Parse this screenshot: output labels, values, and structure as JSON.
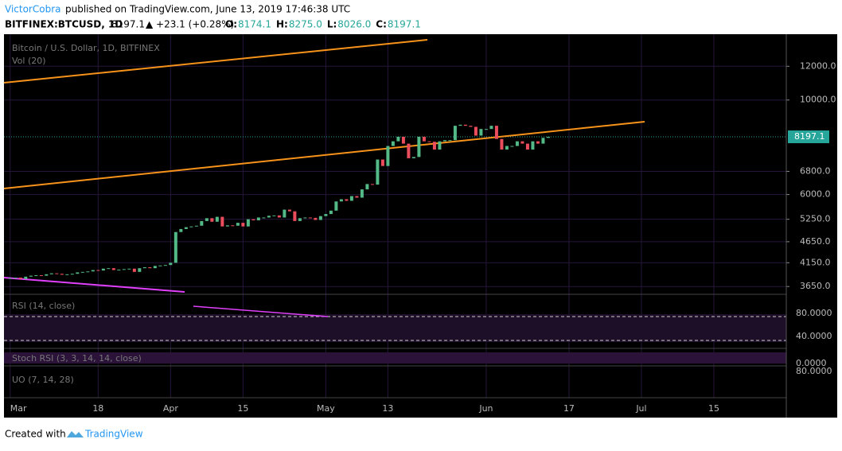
{
  "chart_data": {
    "type": "candlestick",
    "author": "VictorCobra",
    "published": "published on TradingView.com, June 13, 2019 17:46:38 UTC",
    "symbol": "BITFINEX:BTCUSD, 1D",
    "last": 8197.1,
    "change": "▲ +23.1 (+0.28%)",
    "ohlc_labels": [
      "O:",
      "H:",
      "L:",
      "C:"
    ],
    "ohlc": [
      8174.1,
      "8275.0",
      "8026.0",
      8197.1
    ],
    "title": "Bitcoin / U.S. Dollar, 1D, BITFINEX",
    "volume_label": "Vol (20)",
    "indicators": [
      "RSI (14, close)",
      "Stoch RSI (3, 3, 14, 14, close)",
      "UO (7, 14, 28)"
    ],
    "rsi_ticks": [
      "80.0000",
      "40.0000"
    ],
    "stoch_ticks": [
      "0.0000"
    ],
    "uo_ticks": [
      "80.0000"
    ],
    "footer": "Created with",
    "brand": "TradingView",
    "log_scale": true,
    "up_color": "#53b987",
    "down_color": "#eb4d5c",
    "ylim": [
      3530,
      14270
    ],
    "yticks": [
      {
        "value": 3650,
        "label": "3650.0"
      },
      {
        "value": 4150,
        "label": "4150.0"
      },
      {
        "value": 4650,
        "label": "4650.0"
      },
      {
        "value": 5250,
        "label": "5250.0"
      },
      {
        "value": 6000,
        "label": "6000.0"
      },
      {
        "value": 6800,
        "label": "6800.0"
      },
      {
        "value": 10000,
        "label": "10000.0"
      },
      {
        "value": 12000,
        "label": "12000.0"
      }
    ],
    "xlim": [
      -1.2,
      150
    ],
    "xticks": [
      {
        "value": 0,
        "label": "Mar"
      },
      {
        "value": 17,
        "label": "18"
      },
      {
        "value": 31,
        "label": "Apr"
      },
      {
        "value": 45,
        "label": "15"
      },
      {
        "value": 61,
        "label": "May"
      },
      {
        "value": 73,
        "label": "13"
      },
      {
        "value": 92,
        "label": "Jun"
      },
      {
        "value": 108,
        "label": "17"
      },
      {
        "value": 122,
        "label": "Jul"
      },
      {
        "value": 136,
        "label": "15"
      }
    ],
    "values": [
      3820,
      3830,
      3800,
      3850,
      3870,
      3880,
      3870,
      3900,
      3920,
      3910,
      3890,
      3900,
      3910,
      3940,
      3950,
      3960,
      3990,
      3980,
      4020,
      4030,
      3990,
      4000,
      4010,
      4020,
      3950,
      4030,
      4050,
      4030,
      4080,
      4090,
      4100,
      4150,
      4900,
      4980,
      5030,
      5050,
      5070,
      5200,
      5280,
      5180,
      5320,
      5050,
      5080,
      5070,
      5150,
      5050,
      5250,
      5220,
      5300,
      5300,
      5350,
      5360,
      5300,
      5530,
      5480,
      5200,
      5280,
      5300,
      5290,
      5230,
      5340,
      5400,
      5500,
      5780,
      5850,
      5800,
      5950,
      5900,
      6170,
      6350,
      6330,
      7250,
      7000,
      7800,
      8000,
      8200,
      7900,
      7300,
      7350,
      8200,
      8000,
      7980,
      7650,
      8000,
      8050,
      8050,
      8700,
      8750,
      8700,
      8650,
      8250,
      8550,
      8550,
      8700,
      8100,
      7650,
      7800,
      7800,
      8000,
      7900,
      7650,
      8000,
      7900,
      8150,
      8197
    ]
  }
}
